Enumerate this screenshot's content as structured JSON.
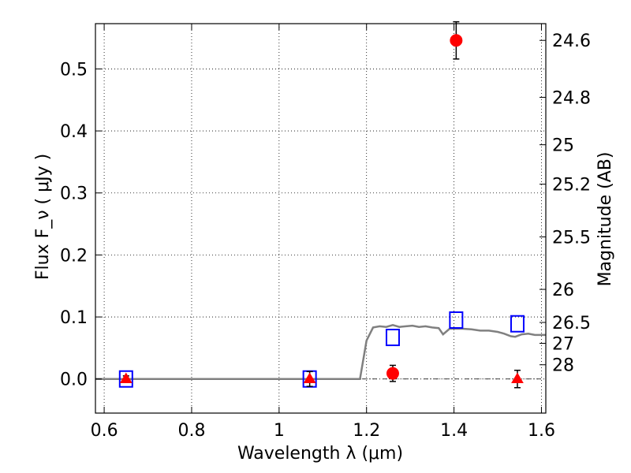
{
  "chart_data": {
    "type": "scatter",
    "xlabel": "Wavelength  λ (μm)",
    "ylabel": "Flux  F_ν  ( μJy )",
    "y2label": "Magnitude (AB)",
    "xlim": [
      0.58,
      1.61
    ],
    "ylim": [
      -0.055,
      0.573
    ],
    "grid": true,
    "x_ticks": [
      {
        "value": 0.6,
        "label": "0.6"
      },
      {
        "value": 0.8,
        "label": "0.8"
      },
      {
        "value": 1.0,
        "label": "1"
      },
      {
        "value": 1.2,
        "label": "1.2"
      },
      {
        "value": 1.4,
        "label": "1.4"
      },
      {
        "value": 1.6,
        "label": "1.6"
      }
    ],
    "y_ticks": [
      {
        "value": 0.0,
        "label": "0.0"
      },
      {
        "value": 0.1,
        "label": "0.1"
      },
      {
        "value": 0.2,
        "label": "0.2"
      },
      {
        "value": 0.3,
        "label": "0.3"
      },
      {
        "value": 0.4,
        "label": "0.4"
      },
      {
        "value": 0.5,
        "label": "0.5"
      }
    ],
    "y2_ticks": [
      {
        "flux": 0.546,
        "label": "24.6"
      },
      {
        "flux": 0.4542,
        "label": "24.8"
      },
      {
        "flux": 0.3777,
        "label": "25"
      },
      {
        "flux": 0.3141,
        "label": "25.2"
      },
      {
        "flux": 0.2291,
        "label": "25.5"
      },
      {
        "flux": 0.1445,
        "label": "26"
      },
      {
        "flux": 0.0912,
        "label": "26.5"
      },
      {
        "flux": 0.0575,
        "label": "27"
      },
      {
        "flux": 0.0229,
        "label": "28"
      }
    ],
    "series": [
      {
        "marker": "line",
        "color": "#808080",
        "points": [
          [
            0.58,
            0.0
          ],
          [
            1.185,
            0.0
          ],
          [
            1.2,
            0.062
          ],
          [
            1.215,
            0.083
          ],
          [
            1.23,
            0.085
          ],
          [
            1.245,
            0.084
          ],
          [
            1.26,
            0.087
          ],
          [
            1.275,
            0.084
          ],
          [
            1.29,
            0.085
          ],
          [
            1.305,
            0.086
          ],
          [
            1.32,
            0.084
          ],
          [
            1.335,
            0.085
          ],
          [
            1.35,
            0.083
          ],
          [
            1.365,
            0.082
          ],
          [
            1.375,
            0.072
          ],
          [
            1.39,
            0.081
          ],
          [
            1.405,
            0.081
          ],
          [
            1.42,
            0.081
          ],
          [
            1.44,
            0.08
          ],
          [
            1.46,
            0.078
          ],
          [
            1.48,
            0.078
          ],
          [
            1.5,
            0.076
          ],
          [
            1.515,
            0.073
          ],
          [
            1.53,
            0.069
          ],
          [
            1.54,
            0.068
          ],
          [
            1.555,
            0.072
          ],
          [
            1.57,
            0.073
          ],
          [
            1.585,
            0.071
          ],
          [
            1.61,
            0.071
          ]
        ]
      },
      {
        "marker": "square",
        "color": "#0000ff",
        "points": [
          [
            0.65,
            0.0
          ],
          [
            1.07,
            0.0
          ],
          [
            1.26,
            0.067
          ],
          [
            1.405,
            0.095
          ],
          [
            1.545,
            0.089
          ]
        ]
      },
      {
        "marker": "circle",
        "color": "#ff0000",
        "points": [
          [
            1.26,
            0.009,
            0.013
          ],
          [
            1.405,
            0.546,
            0.03
          ]
        ]
      },
      {
        "marker": "triangle",
        "color": "#ff0000",
        "points": [
          [
            0.65,
            0.0,
            0.005
          ],
          [
            1.07,
            0.0,
            0.012
          ],
          [
            1.545,
            0.0,
            0.014
          ]
        ]
      }
    ]
  }
}
